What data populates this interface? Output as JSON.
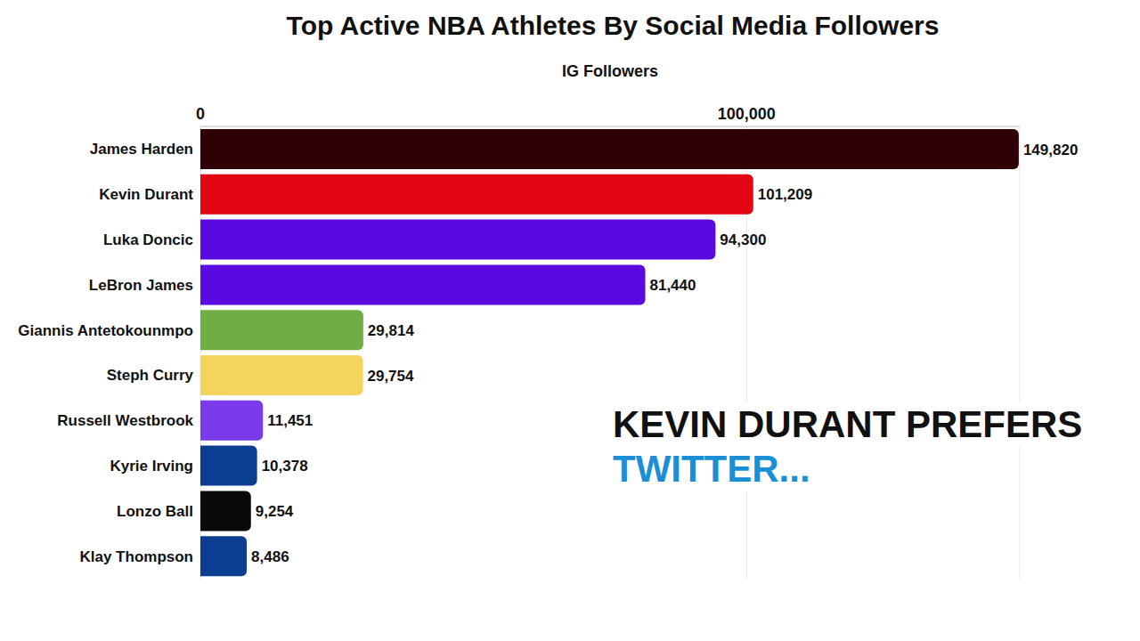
{
  "chart_data": {
    "type": "bar",
    "orientation": "horizontal",
    "title": "Top Active NBA Athletes By Social Media Followers",
    "subtitle": "IG Followers",
    "annotations": [
      "KEVIN DURANT PREFERS",
      "TWITTER..."
    ],
    "categories": [
      "James Harden",
      "Kevin Durant",
      "Luka Doncic",
      "LeBron James",
      "Giannis Antetokounmpo",
      "Steph Curry",
      "Russell Westbrook",
      "Kyrie Irving",
      "Lonzo Ball",
      "Klay Thompson"
    ],
    "values": [
      149820,
      101209,
      94300,
      81440,
      29814,
      29754,
      11451,
      10378,
      9254,
      8486
    ],
    "value_labels": [
      "149,820",
      "101,209",
      "94,300",
      "81,440",
      "29,814",
      "29,754",
      "11,451",
      "10,378",
      "9,254",
      "8,486"
    ],
    "colors": [
      "#2e0005",
      "#e30613",
      "#5a0ae0",
      "#5a0ae0",
      "#6fae45",
      "#f5d45e",
      "#7c3aed",
      "#0b3d91",
      "#0a0a0a",
      "#0b3d91"
    ],
    "xlim": [
      0,
      150000
    ],
    "xticks": [
      0,
      {
        "value": 100000,
        "label": "100,000"
      }
    ],
    "grid": true,
    "data_labels": true
  }
}
